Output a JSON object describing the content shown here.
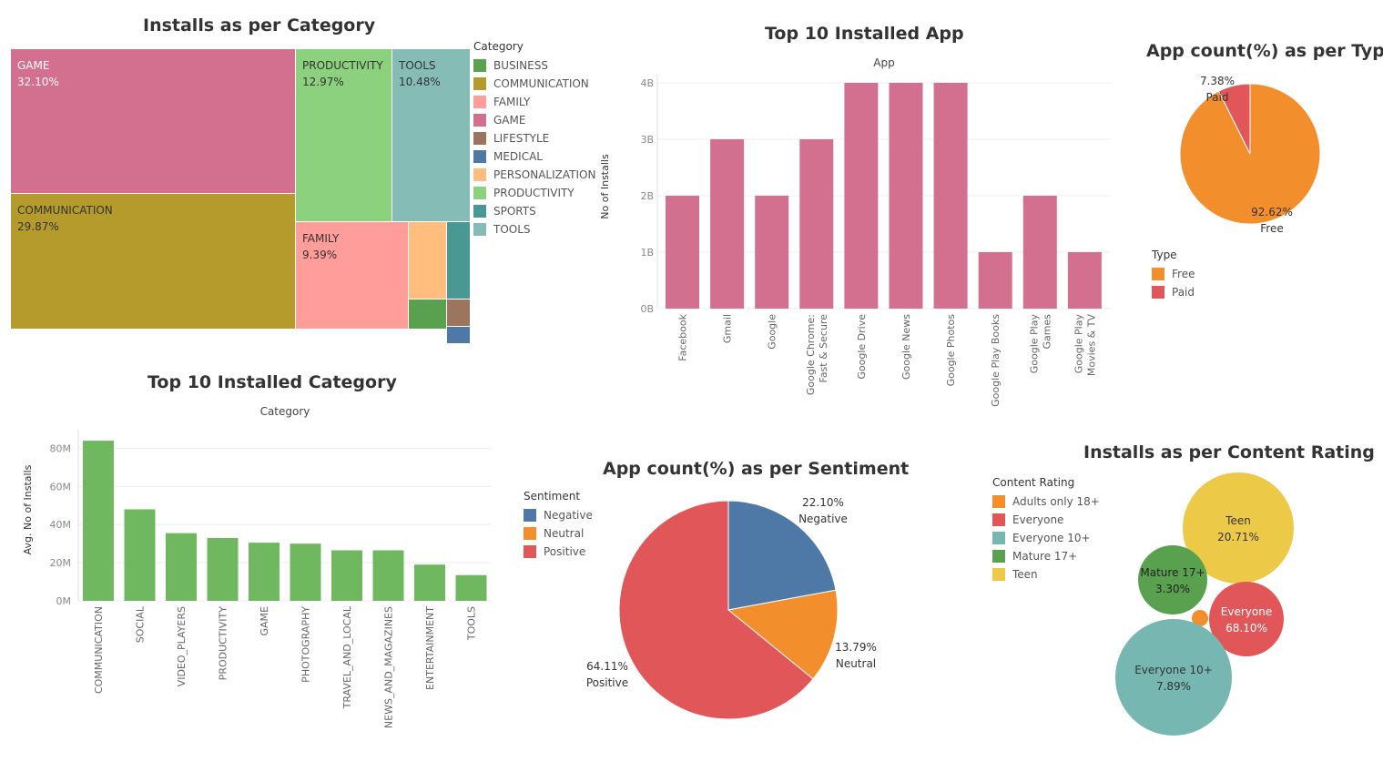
{
  "colors": {
    "pink": "#d4708f",
    "green": "#6fb860",
    "orange": "#f28e2b",
    "red": "#e15759",
    "blue": "#4e79a7",
    "teal": "#76b7b2",
    "darkgreen": "#59a14f",
    "yellow": "#edc948"
  },
  "chart_data": [
    {
      "id": "treemap",
      "type": "treemap",
      "title": "Installs as per Category",
      "legend_title": "Category",
      "legend": [
        {
          "label": "BUSINESS",
          "color": "#59a14f"
        },
        {
          "label": "COMMUNICATION",
          "color": "#b59a2c"
        },
        {
          "label": "FAMILY",
          "color": "#ff9d9a"
        },
        {
          "label": "GAME",
          "color": "#d4708f"
        },
        {
          "label": "LIFESTYLE",
          "color": "#9c755f"
        },
        {
          "label": "MEDICAL",
          "color": "#4e79a7"
        },
        {
          "label": "PERSONALIZATION",
          "color": "#ffbe7d"
        },
        {
          "label": "PRODUCTIVITY",
          "color": "#8cd17d"
        },
        {
          "label": "SPORTS",
          "color": "#499894"
        },
        {
          "label": "TOOLS",
          "color": "#86bcb6"
        }
      ],
      "cells": [
        {
          "name": "GAME",
          "value": "32.10%",
          "color": "#d4708f",
          "text_color": "#ffffff"
        },
        {
          "name": "COMMUNICATION",
          "value": "29.87%",
          "color": "#b59a2c",
          "text_color": "#333333"
        },
        {
          "name": "PRODUCTIVITY",
          "value": "12.97%",
          "color": "#8cd17d",
          "text_color": "#333333"
        },
        {
          "name": "TOOLS",
          "value": "10.48%",
          "color": "#86bcb6",
          "text_color": "#333333"
        },
        {
          "name": "FAMILY",
          "value": "9.39%",
          "color": "#ff9d9a",
          "text_color": "#333333"
        },
        {
          "name": "",
          "value": "",
          "color": "#ffbe7d"
        },
        {
          "name": "",
          "value": "",
          "color": "#499894"
        },
        {
          "name": "",
          "value": "",
          "color": "#59a14f"
        },
        {
          "name": "",
          "value": "",
          "color": "#9c755f"
        },
        {
          "name": "",
          "value": "",
          "color": "#4e79a7"
        }
      ]
    },
    {
      "id": "top_apps",
      "type": "bar",
      "title": "Top 10 Installed App",
      "header": "App",
      "ylabel": "No of Installs",
      "yticks": [
        "0B",
        "1B",
        "2B",
        "3B",
        "4B"
      ],
      "ylim": [
        0,
        4
      ],
      "categories": [
        [
          "Facebook"
        ],
        [
          "Gmail"
        ],
        [
          "Google"
        ],
        [
          "Google Chrome:",
          "Fast & Secure"
        ],
        [
          "Google Drive"
        ],
        [
          "Google News"
        ],
        [
          "Google Photos"
        ],
        [
          "Google Play Books"
        ],
        [
          "Google Play",
          "Games"
        ],
        [
          "Google Play",
          "Movies & TV"
        ]
      ],
      "values": [
        2,
        3,
        2,
        3,
        4,
        4,
        4,
        1,
        2,
        1
      ],
      "color": "#d4708f"
    },
    {
      "id": "type_pie",
      "type": "pie",
      "title": "App count(%) as per Type",
      "legend_title": "Type",
      "slices": [
        {
          "name": "Free",
          "value": 92.62,
          "label": "92.62%",
          "color": "#f28e2b"
        },
        {
          "name": "Paid",
          "value": 7.38,
          "label": "7.38%",
          "color": "#e15759"
        }
      ]
    },
    {
      "id": "top_categories",
      "type": "bar",
      "title": "Top 10 Installed Category",
      "header": "Category",
      "ylabel": "Avg. No of Installs",
      "yticks": [
        "0M",
        "20M",
        "40M",
        "60M",
        "80M"
      ],
      "ylim": [
        0,
        85
      ],
      "categories": [
        "COMMUNICATION",
        "SOCIAL",
        "VIDEO_PLAYERS",
        "PRODUCTIVITY",
        "GAME",
        "PHOTOGRAPHY",
        "TRAVEL_AND_LOCAL",
        "NEWS_AND_MAGAZINES",
        "ENTERTAINMENT",
        "TOOLS"
      ],
      "values": [
        84,
        48,
        35.5,
        33,
        30.5,
        30,
        26.5,
        26.5,
        19,
        13.5
      ],
      "color": "#6fb860"
    },
    {
      "id": "sentiment_pie",
      "type": "pie",
      "title": "App count(%) as per Sentiment",
      "legend_title": "Sentiment",
      "slices": [
        {
          "name": "Negative",
          "value": 22.1,
          "label": "22.10%",
          "color": "#4e79a7"
        },
        {
          "name": "Neutral",
          "value": 13.79,
          "label": "13.79%",
          "color": "#f28e2b"
        },
        {
          "name": "Positive",
          "value": 64.11,
          "label": "64.11%",
          "color": "#e15759"
        }
      ]
    },
    {
      "id": "content_bubbles",
      "type": "bubble",
      "title": "Installs as per Content Rating",
      "legend_title": "Content Rating",
      "legend": [
        {
          "label": "Adults only 18+",
          "color": "#f28e2b"
        },
        {
          "label": "Everyone",
          "color": "#e15759"
        },
        {
          "label": "Everyone 10+",
          "color": "#76b7b2"
        },
        {
          "label": "Mature 17+",
          "color": "#59a14f"
        },
        {
          "label": "Teen",
          "color": "#edc948"
        }
      ],
      "bubbles": [
        {
          "name": "Teen",
          "value": "20.71%",
          "color": "#edc948",
          "text_color": "#333333"
        },
        {
          "name": "Mature 17+",
          "value": "3.30%",
          "color": "#59a14f",
          "text_color": "#222222"
        },
        {
          "name": "Everyone",
          "value": "68.10%",
          "color": "#e15759",
          "text_color": "#ffffff"
        },
        {
          "name": "",
          "value": "",
          "color": "#f28e2b"
        },
        {
          "name": "Everyone 10+",
          "value": "7.89%",
          "color": "#76b7b2",
          "text_color": "#333333"
        }
      ]
    }
  ]
}
